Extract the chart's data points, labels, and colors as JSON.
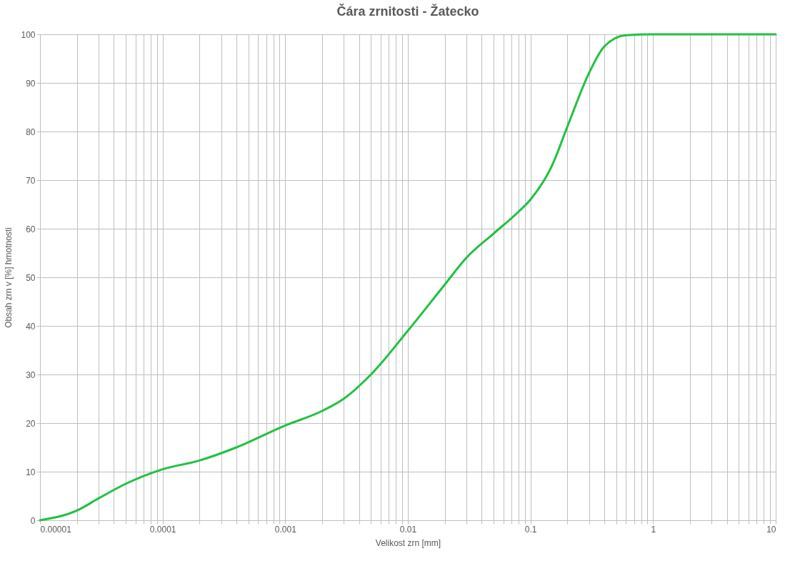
{
  "chart_data": {
    "type": "line",
    "title": "Čára zrnitosti - Žatecko",
    "xlabel": "Velikost zrn [mm]",
    "ylabel": "Obsah zrn v [%] hmotnosti",
    "x": [
      1e-05,
      2e-05,
      3e-05,
      5e-05,
      0.0001,
      0.0002,
      0.0004,
      0.001,
      0.002,
      0.003,
      0.005,
      0.01,
      0.02,
      0.03,
      0.05,
      0.08,
      0.1,
      0.15,
      0.2,
      0.3,
      0.4,
      0.6,
      1,
      10
    ],
    "series": [
      {
        "color": "#22c040",
        "values": [
          0,
          2,
          4.5,
          7.5,
          10.5,
          12.3,
          15,
          19.5,
          22.5,
          25,
          30,
          39,
          48.5,
          54,
          59,
          63.5,
          66,
          73,
          81,
          92,
          97.5,
          99.8,
          100,
          100
        ]
      }
    ],
    "log": "x",
    "xlim": [
      1e-05,
      10
    ],
    "ylim": [
      0,
      100
    ],
    "xticks": [
      {
        "value": 1e-05,
        "label": "0.00001"
      },
      {
        "value": 2e-05,
        "label": null
      },
      {
        "value": 3e-05,
        "label": null
      },
      {
        "value": 4e-05,
        "label": null
      },
      {
        "value": 5e-05,
        "label": null
      },
      {
        "value": 6e-05,
        "label": null
      },
      {
        "value": 7e-05,
        "label": null
      },
      {
        "value": 8e-05,
        "label": null
      },
      {
        "value": 9e-05,
        "label": null
      },
      {
        "value": 0.0001,
        "label": "0.0001"
      },
      {
        "value": 0.0002,
        "label": null
      },
      {
        "value": 0.0003,
        "label": null
      },
      {
        "value": 0.0004,
        "label": null
      },
      {
        "value": 0.0005,
        "label": null
      },
      {
        "value": 0.0006,
        "label": null
      },
      {
        "value": 0.0007,
        "label": null
      },
      {
        "value": 0.0008,
        "label": null
      },
      {
        "value": 0.0009,
        "label": null
      },
      {
        "value": 0.001,
        "label": "0.001"
      },
      {
        "value": 0.002,
        "label": null
      },
      {
        "value": 0.003,
        "label": null
      },
      {
        "value": 0.004,
        "label": null
      },
      {
        "value": 0.005,
        "label": null
      },
      {
        "value": 0.006,
        "label": null
      },
      {
        "value": 0.007,
        "label": null
      },
      {
        "value": 0.008,
        "label": null
      },
      {
        "value": 0.009,
        "label": null
      },
      {
        "value": 0.01,
        "label": "0.01"
      },
      {
        "value": 0.02,
        "label": null
      },
      {
        "value": 0.03,
        "label": null
      },
      {
        "value": 0.04,
        "label": null
      },
      {
        "value": 0.05,
        "label": null
      },
      {
        "value": 0.06,
        "label": null
      },
      {
        "value": 0.07,
        "label": null
      },
      {
        "value": 0.08,
        "label": null
      },
      {
        "value": 0.09,
        "label": null
      },
      {
        "value": 0.1,
        "label": "0.1"
      },
      {
        "value": 0.2,
        "label": null
      },
      {
        "value": 0.3,
        "label": null
      },
      {
        "value": 0.4,
        "label": null
      },
      {
        "value": 0.5,
        "label": null
      },
      {
        "value": 0.6,
        "label": null
      },
      {
        "value": 0.7,
        "label": null
      },
      {
        "value": 0.8,
        "label": null
      },
      {
        "value": 0.9,
        "label": null
      },
      {
        "value": 1,
        "label": "1"
      },
      {
        "value": 2,
        "label": null
      },
      {
        "value": 3,
        "label": null
      },
      {
        "value": 4,
        "label": null
      },
      {
        "value": 5,
        "label": null
      },
      {
        "value": 6,
        "label": null
      },
      {
        "value": 7,
        "label": null
      },
      {
        "value": 8,
        "label": null
      },
      {
        "value": 9,
        "label": null
      },
      {
        "value": 10,
        "label": "10"
      }
    ],
    "yticks": [
      0,
      10,
      20,
      30,
      40,
      50,
      60,
      70,
      80,
      90,
      100
    ],
    "grid": true,
    "legend": false,
    "marker": "none",
    "line_style": "solid"
  }
}
